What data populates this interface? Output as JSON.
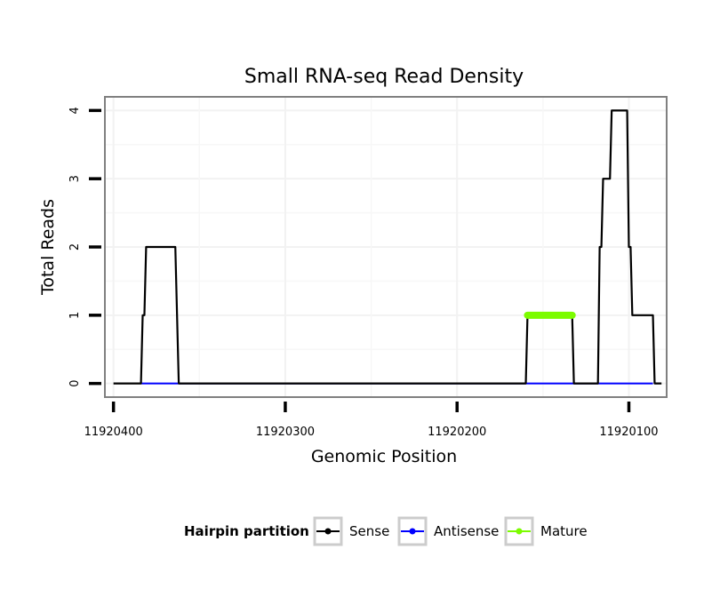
{
  "chart_data": {
    "type": "line",
    "title": "Small RNA-seq Read Density",
    "xlabel": "Genomic Position",
    "ylabel": "Total Reads",
    "x_reversed": true,
    "xlim": [
      11920405,
      11920078
    ],
    "ylim": [
      -0.2,
      4.2
    ],
    "x_ticks": [
      11920400,
      11920300,
      11920200,
      11920100
    ],
    "x_tick_labels": [
      "11920400",
      "11920300",
      "11920200",
      "11920100"
    ],
    "y_ticks": [
      0,
      1,
      2,
      3,
      4
    ],
    "y_tick_labels": [
      "0",
      "1",
      "2",
      "3",
      "4"
    ],
    "grid": true,
    "legend": {
      "title": "Hairpin partition",
      "position": "bottom",
      "entries": [
        {
          "name": "Sense",
          "color": "#000000"
        },
        {
          "name": "Antisense",
          "color": "#0000ff"
        },
        {
          "name": "Mature",
          "color": "#7cfc00"
        }
      ]
    },
    "series": [
      {
        "name": "Sense",
        "color": "#000000",
        "x": [
          11920400,
          11920384,
          11920383,
          11920382,
          11920381,
          11920364,
          11920362,
          11920160,
          11920159,
          11920133,
          11920132,
          11920118,
          11920117,
          11920116,
          11920115,
          11920111,
          11920110,
          11920101,
          11920100,
          11920099,
          11920098,
          11920094,
          11920093,
          11920086,
          11920085,
          11920081
        ],
        "y": [
          0,
          0,
          1,
          1,
          2,
          2,
          0,
          0,
          1,
          1,
          0,
          0,
          2,
          2,
          3,
          3,
          4,
          4,
          2,
          2,
          1,
          1,
          1,
          1,
          0,
          0
        ]
      },
      {
        "name": "Antisense",
        "color": "#0000ff",
        "x": [
          11920384,
          11920363,
          11920160,
          11920132,
          11920117,
          11920086
        ],
        "y": [
          0,
          0,
          0,
          0,
          0,
          0
        ]
      },
      {
        "name": "Mature",
        "color": "#7cfc00",
        "x": [
          11920159,
          11920133
        ],
        "y": [
          1,
          1
        ]
      }
    ]
  }
}
